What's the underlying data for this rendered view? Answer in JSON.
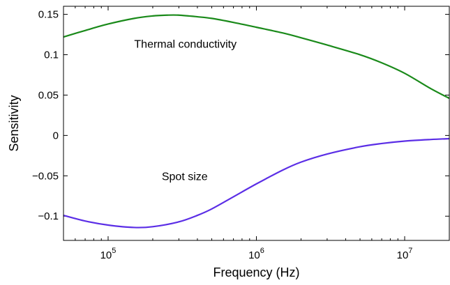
{
  "chart_data": {
    "type": "line",
    "xlabel": "Frequency (Hz)",
    "ylabel": "Sensitivity",
    "xscale": "log",
    "xlim": [
      50000,
      20000000
    ],
    "ylim": [
      -0.13,
      0.16
    ],
    "grid": false,
    "x_ticks": [
      {
        "value": 100000,
        "base": "10",
        "exp": "5"
      },
      {
        "value": 1000000,
        "base": "10",
        "exp": "6"
      },
      {
        "value": 10000000,
        "base": "10",
        "exp": "7"
      }
    ],
    "y_ticks": [
      {
        "value": 0.15,
        "label": "0.15"
      },
      {
        "value": 0.1,
        "label": "0.1"
      },
      {
        "value": 0.05,
        "label": "0.05"
      },
      {
        "value": 0,
        "label": "0"
      },
      {
        "value": -0.05,
        "label": "−0.05"
      },
      {
        "value": -0.1,
        "label": "−0.1"
      }
    ],
    "series": [
      {
        "color": "#1a8a1a",
        "x": [
          50000,
          70000,
          100000,
          150000,
          200000,
          250000,
          300000,
          400000,
          500000,
          700000,
          1000000,
          1500000,
          2000000,
          3000000,
          5000000,
          7000000,
          10000000,
          15000000,
          20000000
        ],
        "y": [
          0.122,
          0.13,
          0.138,
          0.145,
          0.148,
          0.149,
          0.149,
          0.147,
          0.145,
          0.14,
          0.134,
          0.127,
          0.121,
          0.112,
          0.1,
          0.09,
          0.077,
          0.058,
          0.046
        ]
      },
      {
        "color": "#5b2ee6",
        "x": [
          50000,
          70000,
          100000,
          150000,
          200000,
          300000,
          400000,
          500000,
          700000,
          1000000,
          1500000,
          2000000,
          3000000,
          5000000,
          7000000,
          10000000,
          15000000,
          20000000
        ],
        "y": [
          -0.099,
          -0.106,
          -0.111,
          -0.114,
          -0.113,
          -0.107,
          -0.099,
          -0.091,
          -0.076,
          -0.06,
          -0.043,
          -0.033,
          -0.023,
          -0.014,
          -0.01,
          -0.007,
          -0.005,
          -0.004
        ]
      }
    ],
    "annotations": [
      {
        "text": "Thermal conductivity",
        "x": 150000,
        "y": 0.1
      },
      {
        "text": "Spot size",
        "x": 230000,
        "y": -0.064
      }
    ]
  }
}
